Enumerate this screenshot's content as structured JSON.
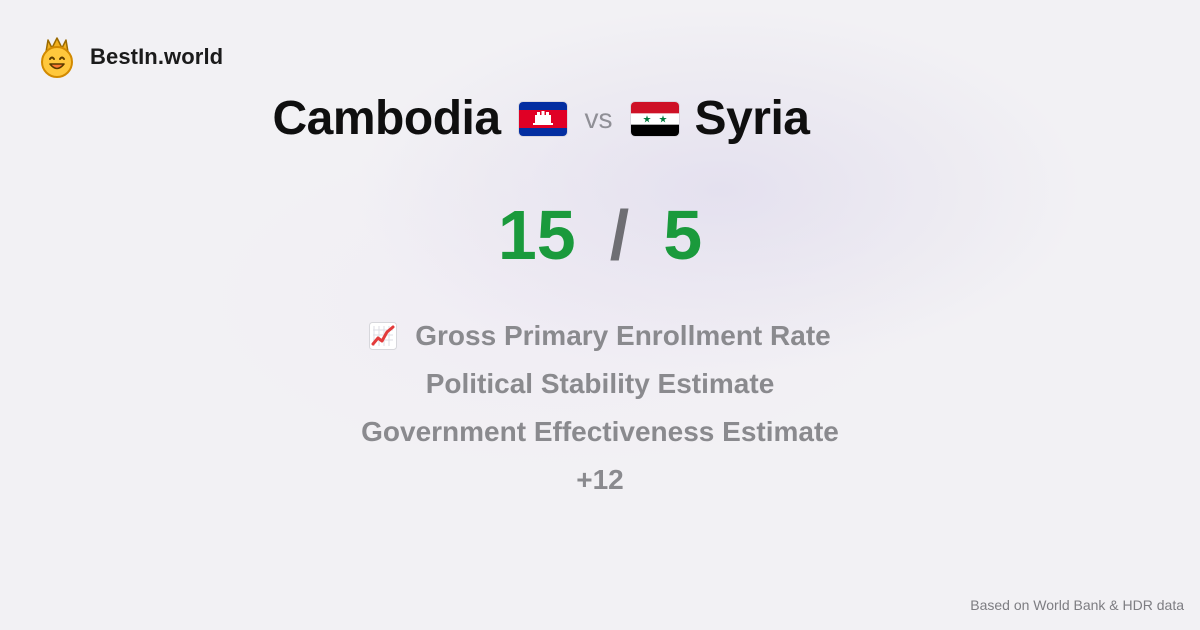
{
  "brand": {
    "name": "BestIn.world",
    "logo_icon": "crown-smiley-icon"
  },
  "comparison": {
    "left_country": "Cambodia",
    "left_flag_icon": "cambodia-flag-icon",
    "vs_label": "vs",
    "right_country": "Syria",
    "right_flag_icon": "syria-flag-icon"
  },
  "score": {
    "left": "15",
    "separator": "/",
    "right": "5",
    "color": "#1a9a3c"
  },
  "metrics": {
    "icon": "chart-increasing-icon",
    "items": [
      "Gross Primary Enrollment Rate",
      "Political Stability Estimate",
      "Government Effectiveness Estimate",
      "+12"
    ]
  },
  "footer": {
    "source": "Based on World Bank & HDR data"
  },
  "colors": {
    "green": "#1a9a3c",
    "gray_text": "#8a8a8e",
    "vs_gray": "#8f8f96"
  }
}
